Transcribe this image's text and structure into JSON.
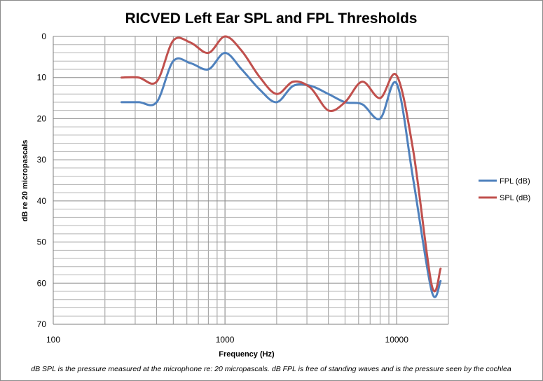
{
  "chart_data": {
    "type": "line",
    "title": "RICVED Left Ear SPL and FPL Thresholds",
    "xlabel": "Frequency (Hz)",
    "ylabel": "dB re 20 micropascals",
    "x_scale": "log",
    "xlim": [
      100,
      20000
    ],
    "ylim": [
      0,
      70
    ],
    "y_inverted": true,
    "x_tick_labels": [
      {
        "value": 100,
        "label": "100"
      },
      {
        "value": 1000,
        "label": "1000"
      },
      {
        "value": 10000,
        "label": "10000"
      }
    ],
    "y_ticks": [
      0,
      10,
      20,
      30,
      40,
      50,
      60,
      70
    ],
    "grid": true,
    "legend_position": "right",
    "series": [
      {
        "name": "FPL (dB)",
        "color": "#4f81bd",
        "points": [
          [
            250,
            16
          ],
          [
            315,
            16
          ],
          [
            400,
            16
          ],
          [
            500,
            6
          ],
          [
            630,
            6.5
          ],
          [
            800,
            8
          ],
          [
            1000,
            4
          ],
          [
            1250,
            8
          ],
          [
            1600,
            13
          ],
          [
            2000,
            16
          ],
          [
            2500,
            12
          ],
          [
            3150,
            12
          ],
          [
            4000,
            14
          ],
          [
            5000,
            16
          ],
          [
            6300,
            16.5
          ],
          [
            8000,
            20
          ],
          [
            10000,
            11.5
          ],
          [
            12500,
            35
          ],
          [
            16000,
            62
          ],
          [
            18000,
            59.5
          ]
        ]
      },
      {
        "name": "SPL (dB)",
        "color": "#c0504d",
        "points": [
          [
            250,
            10
          ],
          [
            315,
            10
          ],
          [
            400,
            11
          ],
          [
            500,
            1
          ],
          [
            630,
            1.5
          ],
          [
            800,
            4
          ],
          [
            1000,
            0
          ],
          [
            1250,
            3.5
          ],
          [
            1600,
            10
          ],
          [
            2000,
            14
          ],
          [
            2500,
            11
          ],
          [
            3150,
            12.5
          ],
          [
            4000,
            18
          ],
          [
            5000,
            16
          ],
          [
            6300,
            11
          ],
          [
            8000,
            15
          ],
          [
            10000,
            9.5
          ],
          [
            12500,
            28
          ],
          [
            16000,
            60.5
          ],
          [
            18000,
            56.5
          ]
        ]
      }
    ]
  },
  "footnote": "dB SPL is the pressure measured at the microphone re: 20 micropascals.  dB FPL is free of standing waves and is the pressure seen by the cochlea"
}
